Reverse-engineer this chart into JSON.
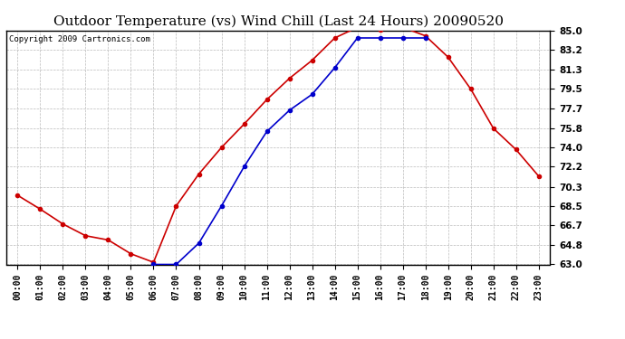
{
  "title": "Outdoor Temperature (vs) Wind Chill (Last 24 Hours) 20090520",
  "copyright": "Copyright 2009 Cartronics.com",
  "hours": [
    "00:00",
    "01:00",
    "02:00",
    "03:00",
    "04:00",
    "05:00",
    "06:00",
    "07:00",
    "08:00",
    "09:00",
    "10:00",
    "11:00",
    "12:00",
    "13:00",
    "14:00",
    "15:00",
    "16:00",
    "17:00",
    "18:00",
    "19:00",
    "20:00",
    "21:00",
    "22:00",
    "23:00"
  ],
  "temp": [
    69.5,
    68.2,
    66.8,
    65.7,
    65.3,
    64.0,
    63.2,
    68.5,
    71.5,
    74.0,
    76.2,
    78.5,
    80.5,
    82.2,
    84.3,
    85.3,
    85.1,
    85.3,
    84.5,
    82.5,
    79.5,
    75.8,
    73.8,
    71.3
  ],
  "windchill": [
    null,
    null,
    null,
    null,
    null,
    null,
    63.0,
    63.0,
    65.0,
    68.5,
    72.2,
    75.5,
    77.5,
    79.0,
    81.5,
    84.3,
    84.3,
    84.3,
    84.3,
    null,
    null,
    null,
    null,
    null
  ],
  "temp_color": "#cc0000",
  "windchill_color": "#0000cc",
  "bg_color": "#ffffff",
  "grid_color": "#bbbbbb",
  "ylim_min": 63.0,
  "ylim_max": 85.0,
  "yticks": [
    63.0,
    64.8,
    66.7,
    68.5,
    70.3,
    72.2,
    74.0,
    75.8,
    77.7,
    79.5,
    81.3,
    83.2,
    85.0
  ],
  "marker": "o",
  "marker_size": 3,
  "linewidth": 1.2,
  "title_fontsize": 11,
  "copyright_fontsize": 6.5,
  "tick_fontsize": 7,
  "ytick_fontsize": 7.5
}
